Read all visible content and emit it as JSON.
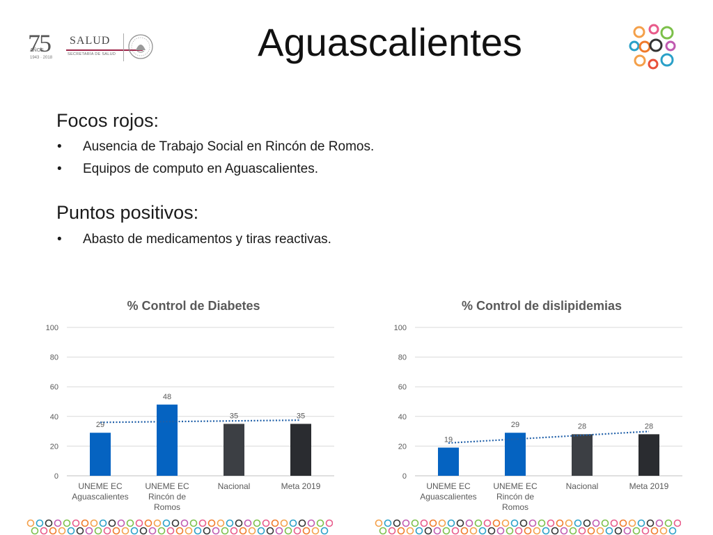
{
  "header": {
    "title": "Aguascalientes",
    "logo_left": {
      "number": "75",
      "anos": "AÑOS",
      "years": "1943 · 2018",
      "brand": "SALUD",
      "subtitle": "SECRETARÍA DE SALUD"
    }
  },
  "focos": {
    "heading": "Focos rojos:",
    "items": [
      {
        "bullet": "•",
        "text": "Ausencia de Trabajo Social en Rincón de Romos."
      },
      {
        "bullet": "•",
        "text": "Equipos de computo en Aguascalientes."
      }
    ]
  },
  "positivos": {
    "heading": "Puntos positivos:",
    "items": [
      {
        "bullet": "•",
        "text": "Abasto de medicamentos y tiras reactivas."
      }
    ]
  },
  "colors": {
    "bar_blue": "#0563c1",
    "bar_gray": "#3c3f44",
    "bar_dark": "#2a2c30",
    "trend": "#1f5fa8",
    "axis_text": "#595959",
    "grid": "#d9d9d9"
  },
  "chart_data": [
    {
      "type": "bar",
      "title": "% Control de Diabetes",
      "categories": [
        [
          "UNEME EC",
          "Aguascalientes"
        ],
        [
          "UNEME EC",
          "Rincón de",
          "Romos"
        ],
        [
          "Nacional"
        ],
        [
          "Meta 2019"
        ]
      ],
      "values": [
        29,
        48,
        35,
        35
      ],
      "value_labels": [
        "29",
        "48",
        "35",
        "35"
      ],
      "ylim": [
        0,
        100
      ],
      "yticks": [
        0,
        20,
        40,
        60,
        80,
        100
      ],
      "grid": true,
      "trendline": "linear, dotted",
      "bar_colors": [
        "#0563c1",
        "#0563c1",
        "#3c3f44",
        "#2a2c30"
      ]
    },
    {
      "type": "bar",
      "title": "% Control de dislipidemias",
      "categories": [
        [
          "UNEME EC",
          "Aguascalientes"
        ],
        [
          "UNEME EC",
          "Rincón de",
          "Romos"
        ],
        [
          "Nacional"
        ],
        [
          "Meta 2019"
        ]
      ],
      "values": [
        19,
        29,
        28,
        28
      ],
      "value_labels": [
        "19",
        "29",
        "28",
        "28"
      ],
      "ylim": [
        0,
        100
      ],
      "yticks": [
        0,
        20,
        40,
        60,
        80,
        100
      ],
      "grid": true,
      "trendline": "linear, dotted",
      "bar_colors": [
        "#0563c1",
        "#0563c1",
        "#3c3f44",
        "#2a2c30"
      ]
    }
  ]
}
